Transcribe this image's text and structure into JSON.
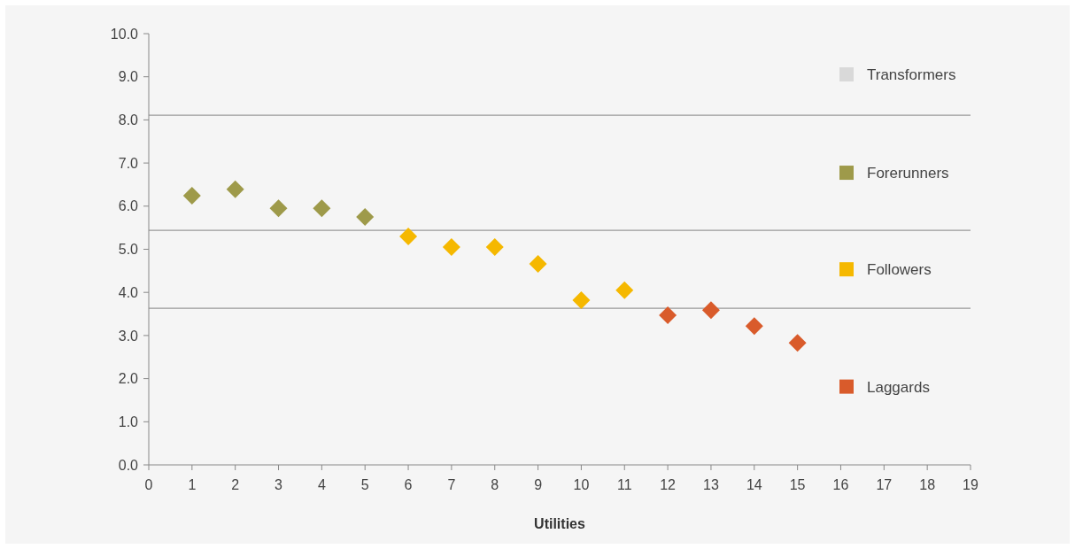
{
  "chart_data": {
    "type": "scatter",
    "xlabel": "Utilities",
    "marker": "diamond",
    "grid": false,
    "legend": "right",
    "xlim": [
      0,
      19
    ],
    "xticks": [
      0,
      1,
      2,
      3,
      4,
      5,
      6,
      7,
      8,
      9,
      10,
      11,
      12,
      13,
      14,
      15,
      16,
      17,
      18,
      19
    ],
    "ylim": [
      0,
      10
    ],
    "yticks": [
      {
        "value": 0,
        "label": "0.0"
      },
      {
        "value": 1,
        "label": "1.0"
      },
      {
        "value": 2,
        "label": "2.0"
      },
      {
        "value": 3,
        "label": "3.0"
      },
      {
        "value": 4,
        "label": "4.0"
      },
      {
        "value": 5,
        "label": "5.0"
      },
      {
        "value": 6,
        "label": "6.0"
      },
      {
        "value": 7,
        "label": "7.0"
      },
      {
        "value": 8,
        "label": "8.0"
      },
      {
        "value": 9,
        "label": "9.0"
      },
      {
        "value": 10,
        "label": "10.0"
      }
    ],
    "series": [
      {
        "name": "Transformers",
        "color": "#d9d9d9"
      },
      {
        "name": "Forerunners",
        "color": "#9e9a4a",
        "x": [
          1,
          2,
          3,
          4,
          5
        ],
        "values": [
          6.24,
          6.39,
          5.95,
          5.95,
          5.75
        ]
      },
      {
        "name": "Followers",
        "color": "#f5b800",
        "x": [
          6,
          7,
          8,
          9,
          10,
          11
        ],
        "values": [
          5.3,
          5.05,
          5.05,
          4.66,
          3.82,
          4.05
        ]
      },
      {
        "name": "Laggards",
        "color": "#d95b2b",
        "x": [
          12,
          13,
          14,
          15
        ],
        "values": [
          3.47,
          3.59,
          3.22,
          2.83
        ]
      }
    ],
    "ref_lines": [
      {
        "axis": "y",
        "value": 8.11,
        "color": "#9a9a9a"
      },
      {
        "axis": "y",
        "value": 5.44,
        "color": "#9a9a9a"
      },
      {
        "axis": "y",
        "value": 3.63,
        "color": "#9a9a9a"
      }
    ]
  }
}
